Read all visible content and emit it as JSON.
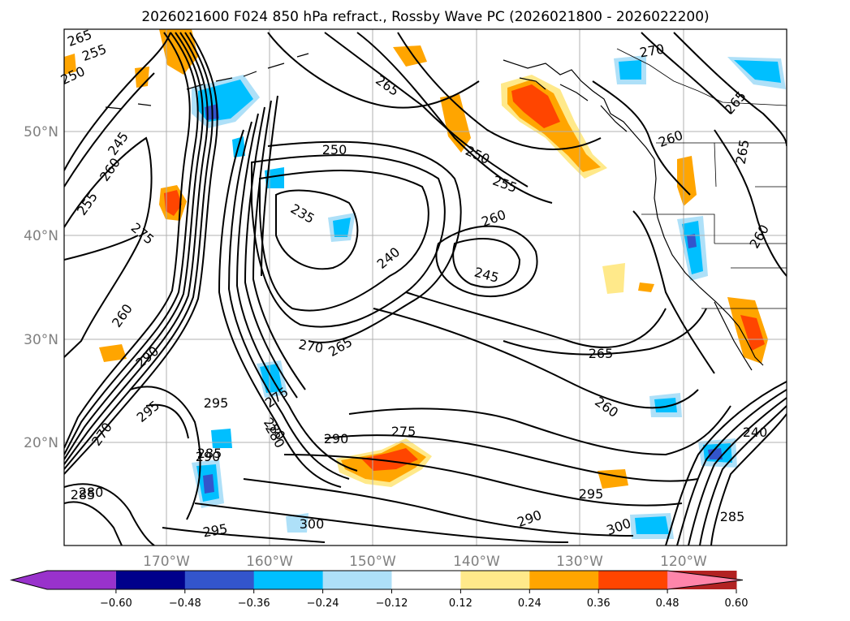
{
  "title": "2026021600 F024 850 hPa refract., Rossby Wave PC (2026021800 - 2026022200)",
  "lat_labels": [
    "50°N",
    "40°N",
    "30°N",
    "20°N"
  ],
  "lon_labels": [
    "170°W",
    "160°W",
    "150°W",
    "140°W",
    "130°W",
    "120°W"
  ],
  "colorbar": {
    "ticks": [
      "−0.60",
      "−0.48",
      "−0.36",
      "−0.24",
      "−0.12",
      "0.12",
      "0.24",
      "0.36",
      "0.48",
      "0.60"
    ],
    "colors": [
      "#9932cc",
      "#00008b",
      "#3355cc",
      "#00bfff",
      "#aee0f8",
      "#ffffff",
      "#ffe98a",
      "#ffa500",
      "#ff4500",
      "#b22222",
      "#ff85aa"
    ]
  },
  "contour_labels": [
    "265",
    "255",
    "250",
    "245",
    "260",
    "265",
    "275",
    "290",
    "260",
    "255",
    "250",
    "235",
    "240",
    "245",
    "250",
    "255",
    "260",
    "260",
    "270",
    "265",
    "270",
    "275",
    "280",
    "295",
    "285",
    "290",
    "290",
    "280",
    "285",
    "295",
    "300",
    "275",
    "265",
    "260",
    "295",
    "290",
    "300",
    "240",
    "285",
    "265",
    "260",
    "265",
    "270",
    "280",
    "295"
  ],
  "fill_colors": {
    "pos1": "#ffe98a",
    "pos2": "#ffa500",
    "pos3": "#ff4500",
    "neg1": "#aee0f8",
    "neg2": "#00bfff",
    "neg3": "#3355cc"
  }
}
